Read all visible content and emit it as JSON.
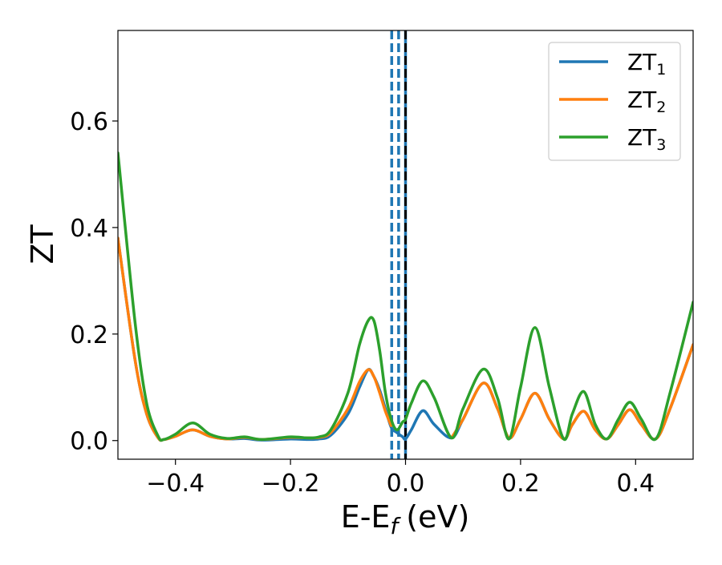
{
  "chart_data": {
    "type": "line",
    "title": "",
    "xlabel": "E-E",
    "xlabel_sub": "f",
    "xlabel_unit": "(eV)",
    "ylabel": "ZT",
    "xlim": [
      -0.5,
      0.5
    ],
    "ylim": [
      -0.035,
      0.77
    ],
    "xticks": [
      -0.4,
      -0.2,
      0.0,
      0.2,
      0.4
    ],
    "xtick_labels": [
      "−0.4",
      "−0.2",
      "0.0",
      "0.2",
      "0.4"
    ],
    "yticks": [
      0.0,
      0.2,
      0.4,
      0.6
    ],
    "ytick_labels": [
      "0.0",
      "0.2",
      "0.4",
      "0.6"
    ],
    "grid": false,
    "legend_position": "top-right",
    "vlines": [
      {
        "x": -0.024,
        "color": "#1f77b4",
        "style": "dashed"
      },
      {
        "x": -0.012,
        "color": "#1f77b4",
        "style": "dashed"
      },
      {
        "x": 0.0,
        "color": "#1f77b4",
        "style": "solid"
      },
      {
        "x": 0.0,
        "color": "#000000",
        "style": "dashed"
      }
    ],
    "x": [
      -0.5,
      -0.47,
      -0.45,
      -0.43,
      -0.42,
      -0.4,
      -0.37,
      -0.34,
      -0.31,
      -0.28,
      -0.25,
      -0.2,
      -0.17,
      -0.15,
      -0.13,
      -0.1,
      -0.08,
      -0.065,
      -0.055,
      -0.045,
      -0.035,
      -0.025,
      -0.015,
      -0.005,
      0.0,
      0.01,
      0.03,
      0.05,
      0.08,
      0.1,
      0.135,
      0.16,
      0.18,
      0.2,
      0.225,
      0.25,
      0.275,
      0.29,
      0.31,
      0.33,
      0.35,
      0.37,
      0.39,
      0.41,
      0.435,
      0.46,
      0.5
    ],
    "series": [
      {
        "name": "ZT",
        "name_sub": "1",
        "color": "#1f77b4",
        "values": [
          0.38,
          0.15,
          0.05,
          0.005,
          0.002,
          0.008,
          0.02,
          0.008,
          0.003,
          0.004,
          0.001,
          0.003,
          0.002,
          0.003,
          0.01,
          0.05,
          0.1,
          0.133,
          0.12,
          0.095,
          0.06,
          0.025,
          0.015,
          0.007,
          0.003,
          0.02,
          0.056,
          0.03,
          0.005,
          0.04,
          0.108,
          0.06,
          0.005,
          0.04,
          0.089,
          0.04,
          0.003,
          0.03,
          0.055,
          0.02,
          0.003,
          0.03,
          0.058,
          0.03,
          0.003,
          0.06,
          0.18
        ]
      },
      {
        "name": "ZT",
        "name_sub": "2",
        "color": "#ff7f0e",
        "values": [
          0.38,
          0.15,
          0.05,
          0.005,
          0.002,
          0.008,
          0.02,
          0.008,
          0.003,
          0.006,
          0.002,
          0.006,
          0.005,
          0.006,
          0.015,
          0.06,
          0.11,
          0.133,
          0.12,
          0.09,
          0.055,
          0.028,
          null,
          null,
          null,
          null,
          null,
          null,
          0.005,
          0.04,
          0.108,
          0.06,
          0.005,
          0.04,
          0.089,
          0.04,
          0.003,
          0.03,
          0.055,
          0.02,
          0.003,
          0.03,
          0.058,
          0.03,
          0.003,
          0.06,
          0.18
        ]
      },
      {
        "name": "ZT",
        "name_sub": "3",
        "color": "#2ca02c",
        "values": [
          0.54,
          0.22,
          0.07,
          0.008,
          0.002,
          0.012,
          0.033,
          0.012,
          0.004,
          0.007,
          0.002,
          0.007,
          0.005,
          0.007,
          0.02,
          0.09,
          0.18,
          0.225,
          0.225,
          0.17,
          0.09,
          0.04,
          0.02,
          0.035,
          0.04,
          0.07,
          0.112,
          0.08,
          0.005,
          0.06,
          0.134,
          0.08,
          0.003,
          0.1,
          0.212,
          0.1,
          0.003,
          0.05,
          0.092,
          0.03,
          0.003,
          0.04,
          0.072,
          0.04,
          0.003,
          0.09,
          0.26
        ]
      }
    ]
  }
}
